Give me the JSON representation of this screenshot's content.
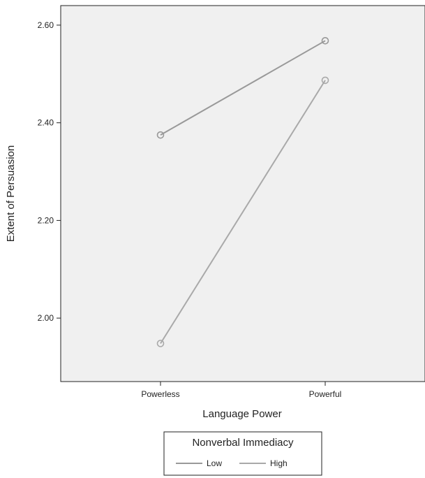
{
  "chart_data": {
    "type": "line",
    "title": "",
    "xlabel": "Language Power",
    "ylabel": "Extent of Persuasion",
    "categories": [
      "Powerless",
      "Powerful"
    ],
    "ylim": [
      1.87,
      2.64
    ],
    "yticks": [
      "2.00",
      "2.20",
      "2.40",
      "2.60"
    ],
    "series": [
      {
        "name": "Low",
        "values": [
          2.375,
          2.568
        ],
        "color": "#999999"
      },
      {
        "name": "High",
        "values": [
          1.948,
          2.487
        ],
        "color": "#a9a9a9"
      }
    ],
    "legend": {
      "title": "Nonverbal Immediacy",
      "placement": "bottom-center"
    },
    "grid": false,
    "background": "#f0f0f0"
  }
}
